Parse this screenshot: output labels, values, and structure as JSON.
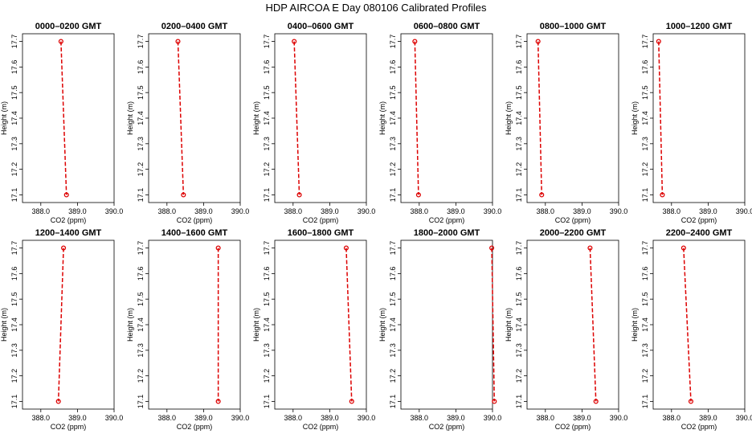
{
  "figure": {
    "title": "HDP  AIRCOA E   Day 080106   Calibrated Profiles"
  },
  "colors": {
    "profile": "#dd0000",
    "axes": "#000000",
    "background": "#ffffff"
  },
  "chart_data": [
    {
      "type": "line",
      "title": "0000–0200 GMT",
      "xlabel": "CO2 (ppm)",
      "ylabel": "Height (m)",
      "xlim": [
        387.5,
        390.0
      ],
      "ylim": [
        17.07,
        17.73
      ],
      "xticks": [
        "388.0",
        "389.0",
        "390.0"
      ],
      "yticks": [
        "17.1",
        "17.2",
        "17.3",
        "17.4",
        "17.5",
        "17.6",
        "17.7"
      ],
      "x": [
        388.55,
        388.7
      ],
      "y": [
        17.7,
        17.1
      ],
      "grid": false,
      "legend": "none"
    },
    {
      "type": "line",
      "title": "0200–0400 GMT",
      "xlabel": "CO2 (ppm)",
      "ylabel": "Height (m)",
      "xlim": [
        387.5,
        390.0
      ],
      "ylim": [
        17.07,
        17.73
      ],
      "xticks": [
        "388.0",
        "389.0",
        "390.0"
      ],
      "yticks": [
        "17.1",
        "17.2",
        "17.3",
        "17.4",
        "17.5",
        "17.6",
        "17.7"
      ],
      "x": [
        388.3,
        388.45
      ],
      "y": [
        17.7,
        17.1
      ],
      "grid": false,
      "legend": "none"
    },
    {
      "type": "line",
      "title": "0400–0600 GMT",
      "xlabel": "CO2 (ppm)",
      "ylabel": "Height (m)",
      "xlim": [
        387.5,
        390.0
      ],
      "ylim": [
        17.07,
        17.73
      ],
      "xticks": [
        "388.0",
        "389.0",
        "390.0"
      ],
      "yticks": [
        "17.1",
        "17.2",
        "17.3",
        "17.4",
        "17.5",
        "17.6",
        "17.7"
      ],
      "x": [
        388.03,
        388.17
      ],
      "y": [
        17.7,
        17.1
      ],
      "grid": false,
      "legend": "none"
    },
    {
      "type": "line",
      "title": "0600–0800 GMT",
      "xlabel": "CO2 (ppm)",
      "ylabel": "Height (m)",
      "xlim": [
        387.5,
        390.0
      ],
      "ylim": [
        17.07,
        17.73
      ],
      "xticks": [
        "388.0",
        "389.0",
        "390.0"
      ],
      "yticks": [
        "17.1",
        "17.2",
        "17.3",
        "17.4",
        "17.5",
        "17.6",
        "17.7"
      ],
      "x": [
        387.88,
        387.98
      ],
      "y": [
        17.7,
        17.1
      ],
      "grid": false,
      "legend": "none"
    },
    {
      "type": "line",
      "title": "0800–1000 GMT",
      "xlabel": "CO2 (ppm)",
      "ylabel": "Height (m)",
      "xlim": [
        387.5,
        390.0
      ],
      "ylim": [
        17.07,
        17.73
      ],
      "xticks": [
        "388.0",
        "389.0",
        "390.0"
      ],
      "yticks": [
        "17.1",
        "17.2",
        "17.3",
        "17.4",
        "17.5",
        "17.6",
        "17.7"
      ],
      "x": [
        387.8,
        387.9
      ],
      "y": [
        17.7,
        17.1
      ],
      "grid": false,
      "legend": "none"
    },
    {
      "type": "line",
      "title": "1000–1200 GMT",
      "xlabel": "CO2 (ppm)",
      "ylabel": "Height (m)",
      "xlim": [
        387.5,
        390.0
      ],
      "ylim": [
        17.07,
        17.73
      ],
      "xticks": [
        "388.0",
        "389.0",
        "390.0"
      ],
      "yticks": [
        "17.1",
        "17.2",
        "17.3",
        "17.4",
        "17.5",
        "17.6",
        "17.7"
      ],
      "x": [
        387.65,
        387.75
      ],
      "y": [
        17.7,
        17.1
      ],
      "grid": false,
      "legend": "none"
    },
    {
      "type": "line",
      "title": "1200–1400 GMT",
      "xlabel": "CO2 (ppm)",
      "ylabel": "Height (m)",
      "xlim": [
        387.5,
        390.0
      ],
      "ylim": [
        17.07,
        17.73
      ],
      "xticks": [
        "388.0",
        "389.0",
        "390.0"
      ],
      "yticks": [
        "17.1",
        "17.2",
        "17.3",
        "17.4",
        "17.5",
        "17.6",
        "17.7"
      ],
      "x": [
        388.62,
        388.48
      ],
      "y": [
        17.7,
        17.1
      ],
      "grid": false,
      "legend": "none"
    },
    {
      "type": "line",
      "title": "1400–1600 GMT",
      "xlabel": "CO2 (ppm)",
      "ylabel": "Height (m)",
      "xlim": [
        387.5,
        390.0
      ],
      "ylim": [
        17.07,
        17.73
      ],
      "xticks": [
        "388.0",
        "389.0",
        "390.0"
      ],
      "yticks": [
        "17.1",
        "17.2",
        "17.3",
        "17.4",
        "17.5",
        "17.6",
        "17.7"
      ],
      "x": [
        389.4,
        389.4
      ],
      "y": [
        17.7,
        17.1
      ],
      "grid": false,
      "legend": "none"
    },
    {
      "type": "line",
      "title": "1600–1800 GMT",
      "xlabel": "CO2 (ppm)",
      "ylabel": "Height (m)",
      "xlim": [
        387.5,
        390.0
      ],
      "ylim": [
        17.07,
        17.73
      ],
      "xticks": [
        "388.0",
        "389.0",
        "390.0"
      ],
      "yticks": [
        "17.1",
        "17.2",
        "17.3",
        "17.4",
        "17.5",
        "17.6",
        "17.7"
      ],
      "x": [
        389.45,
        389.6
      ],
      "y": [
        17.7,
        17.1
      ],
      "grid": false,
      "legend": "none"
    },
    {
      "type": "line",
      "title": "1800–2000 GMT",
      "xlabel": "CO2 (ppm)",
      "ylabel": "Height (m)",
      "xlim": [
        387.5,
        390.0
      ],
      "ylim": [
        17.07,
        17.73
      ],
      "xticks": [
        "388.0",
        "389.0",
        "390.0"
      ],
      "yticks": [
        "17.1",
        "17.2",
        "17.3",
        "17.4",
        "17.5",
        "17.6",
        "17.7"
      ],
      "x": [
        389.98,
        390.05
      ],
      "y": [
        17.7,
        17.1
      ],
      "grid": false,
      "legend": "none"
    },
    {
      "type": "line",
      "title": "2000–2200 GMT",
      "xlabel": "CO2 (ppm)",
      "ylabel": "Height (m)",
      "xlim": [
        387.5,
        390.0
      ],
      "ylim": [
        17.07,
        17.73
      ],
      "xticks": [
        "388.0",
        "389.0",
        "390.0"
      ],
      "yticks": [
        "17.1",
        "17.2",
        "17.3",
        "17.4",
        "17.5",
        "17.6",
        "17.7"
      ],
      "x": [
        389.22,
        389.38
      ],
      "y": [
        17.7,
        17.1
      ],
      "grid": false,
      "legend": "none"
    },
    {
      "type": "line",
      "title": "2200–2400 GMT",
      "xlabel": "CO2 (ppm)",
      "ylabel": "Height (m)",
      "xlim": [
        387.5,
        390.0
      ],
      "ylim": [
        17.07,
        17.73
      ],
      "xticks": [
        "388.0",
        "389.0",
        "390.0"
      ],
      "yticks": [
        "17.1",
        "17.2",
        "17.3",
        "17.4",
        "17.5",
        "17.6",
        "17.7"
      ],
      "x": [
        388.33,
        388.53
      ],
      "y": [
        17.7,
        17.1
      ],
      "grid": false,
      "legend": "none"
    }
  ]
}
